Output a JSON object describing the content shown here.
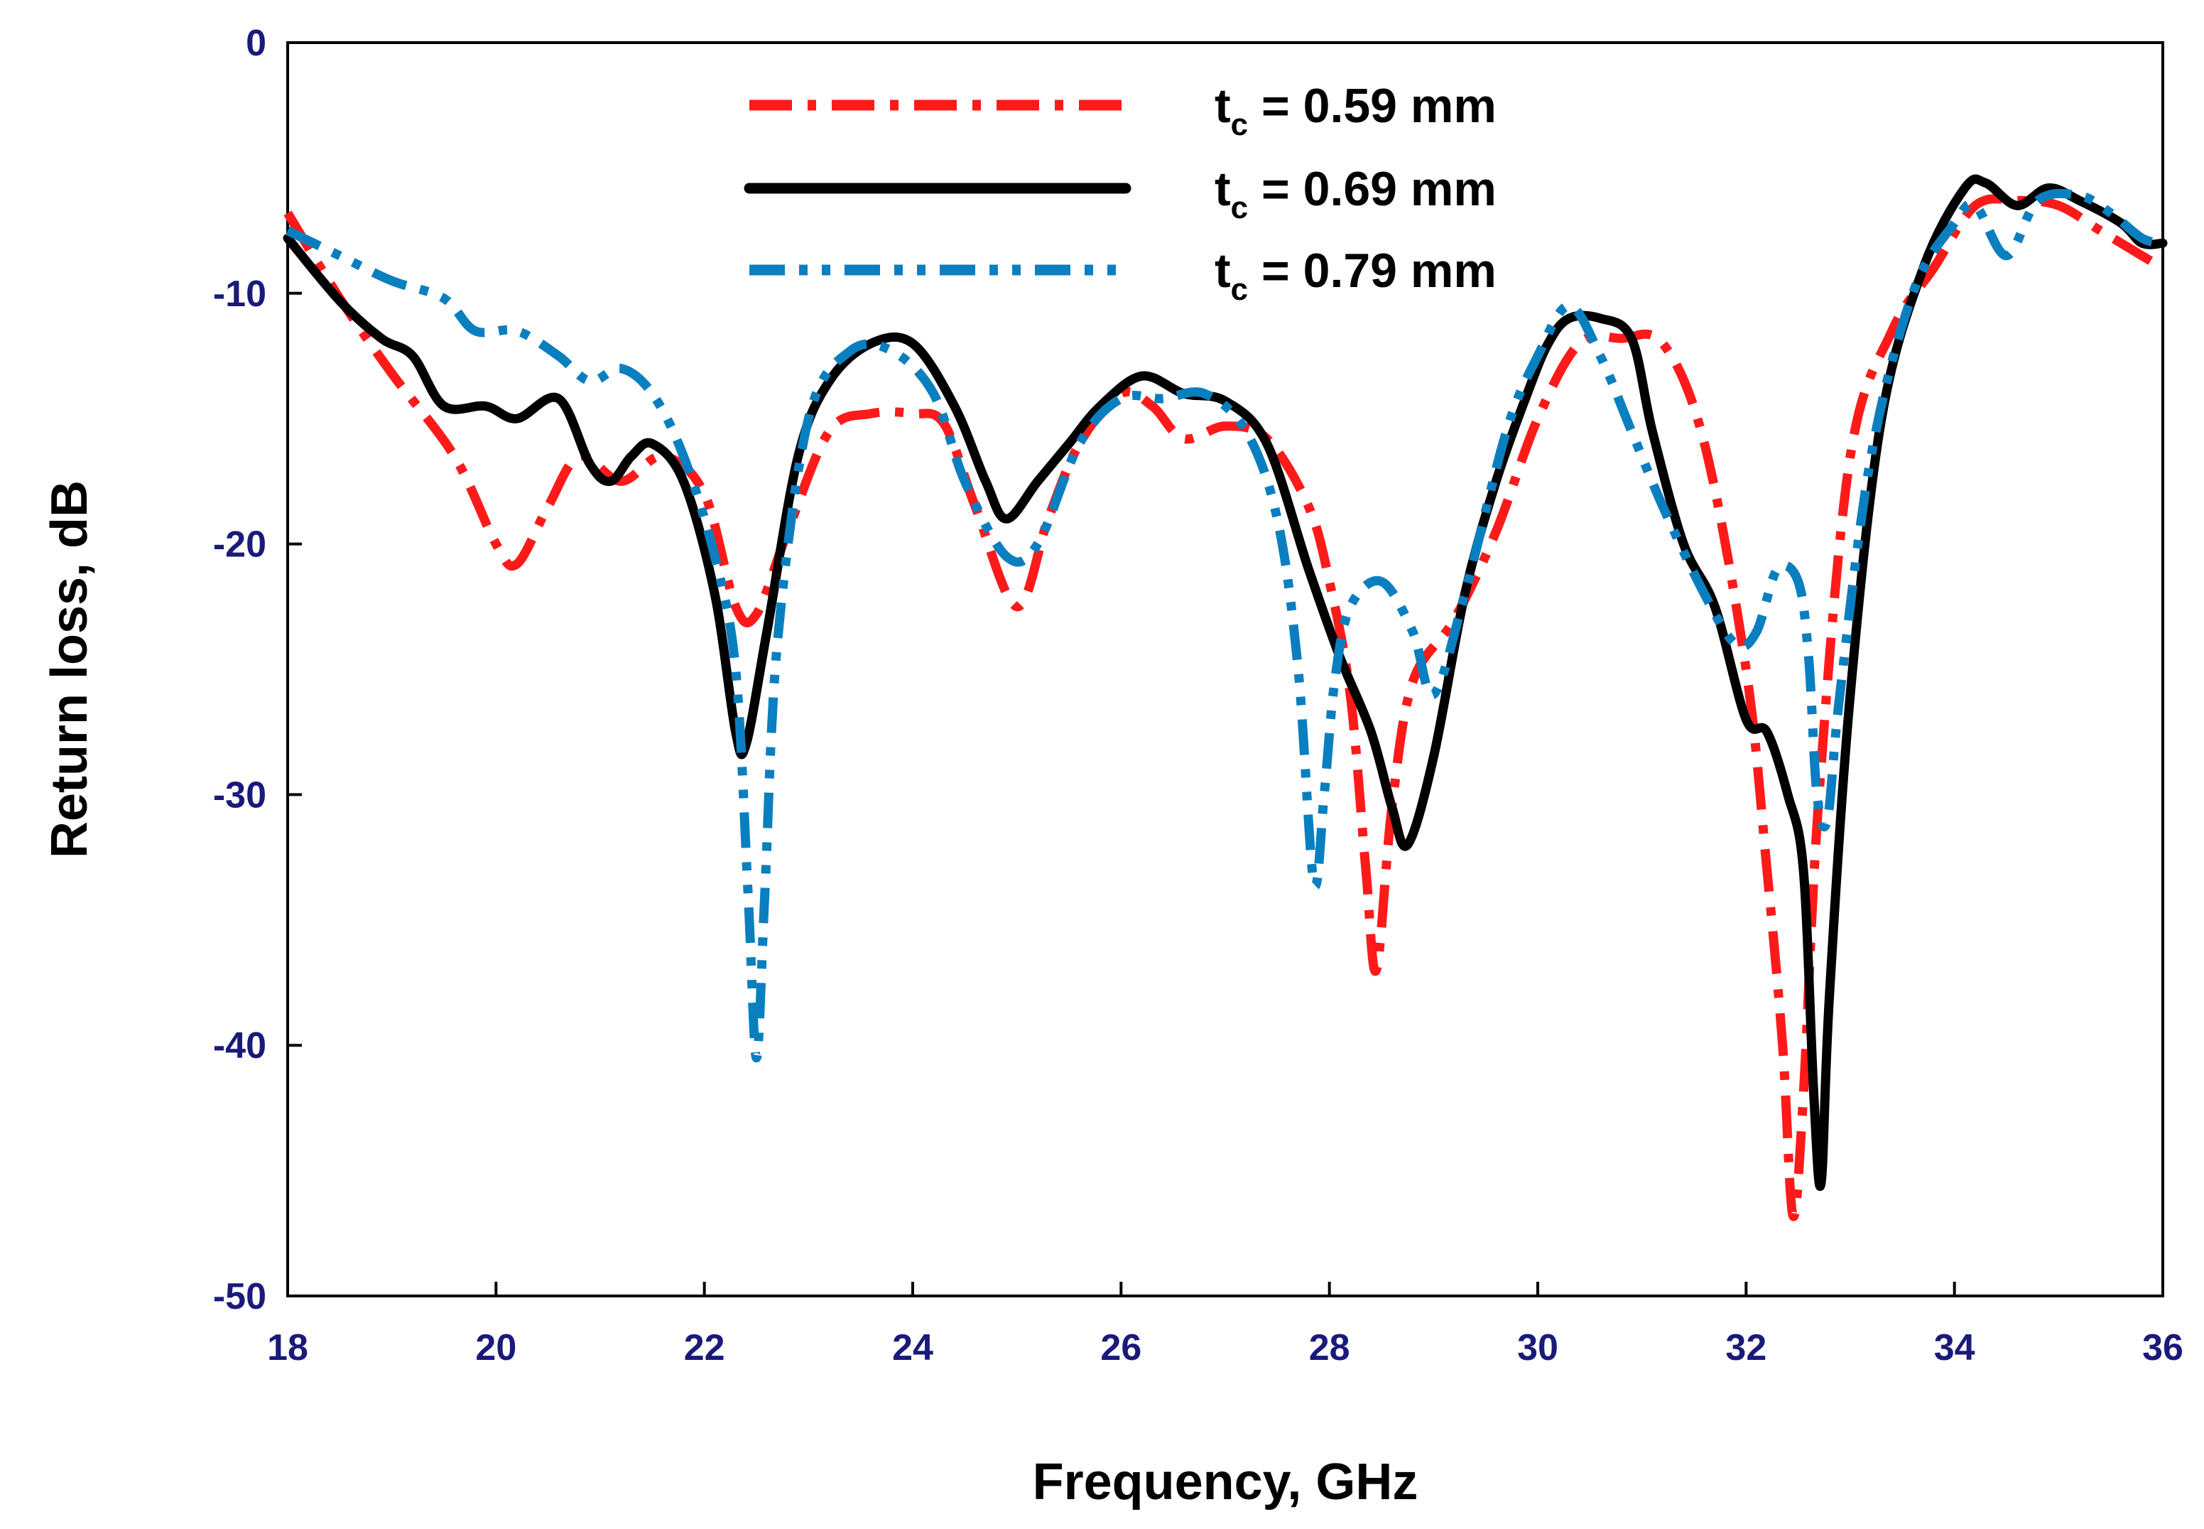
{
  "chart_data": {
    "type": "line",
    "title": "",
    "xlabel": "Frequency, GHz",
    "ylabel": "Return loss, dB",
    "xlim": [
      18,
      36
    ],
    "ylim": [
      -50,
      0
    ],
    "xticks": [
      "18",
      "20",
      "22",
      "24",
      "26",
      "28",
      "30",
      "32",
      "34",
      "36"
    ],
    "yticks": [
      "0",
      "-10",
      "-20",
      "-30",
      "-40",
      "-50"
    ],
    "legend_position": "top-center",
    "colors": {
      "axis": "#000000",
      "tick_label": "#1a1a7a",
      "red": "#ff1a1a",
      "black": "#000000",
      "blue": "#0a7fc0"
    },
    "series": [
      {
        "name": "tc = 0.59 mm",
        "legend_main": "t",
        "legend_sub": "c",
        "legend_rest": " = 0.59 mm",
        "color": "#ff1a1a",
        "dash": "dashdot",
        "x": [
          18.0,
          18.5,
          19.0,
          19.6,
          20.0,
          20.2,
          20.5,
          20.8,
          21.2,
          21.6,
          22.0,
          22.3,
          22.5,
          22.8,
          23.2,
          23.6,
          24.0,
          24.3,
          24.6,
          25.0,
          25.3,
          25.6,
          26.0,
          26.3,
          26.6,
          27.0,
          27.4,
          27.8,
          28.0,
          28.2,
          28.35,
          28.45,
          28.6,
          28.8,
          29.2,
          29.6,
          30.0,
          30.4,
          30.8,
          31.2,
          31.6,
          32.0,
          32.2,
          32.35,
          32.45,
          32.55,
          32.7,
          33.0,
          33.4,
          33.8,
          34.2,
          34.6,
          35.0,
          35.4,
          35.8,
          36.0
        ],
        "y": [
          -6.8,
          -10.2,
          -13.2,
          -16.5,
          -20.0,
          -20.8,
          -18.5,
          -16.5,
          -17.5,
          -16.5,
          -18.0,
          -22.5,
          -22.8,
          -19.5,
          -15.5,
          -14.8,
          -14.8,
          -15.2,
          -18.5,
          -22.5,
          -19.0,
          -16.0,
          -14.0,
          -14.5,
          -15.8,
          -15.3,
          -15.8,
          -18.5,
          -21.5,
          -26.0,
          -33.0,
          -37.0,
          -30.5,
          -25.5,
          -23.0,
          -19.5,
          -15.0,
          -12.0,
          -11.8,
          -12.0,
          -16.0,
          -25.0,
          -33.0,
          -40.0,
          -46.8,
          -42.0,
          -30.0,
          -16.5,
          -11.5,
          -9.0,
          -6.5,
          -6.3,
          -6.5,
          -7.5,
          -8.5,
          -9.0
        ]
      },
      {
        "name": "tc = 0.69 mm",
        "legend_main": "t",
        "legend_sub": "c",
        "legend_rest": " = 0.69 mm",
        "color": "#000000",
        "dash": "solid",
        "x": [
          18.0,
          18.5,
          18.9,
          19.2,
          19.5,
          19.9,
          20.2,
          20.6,
          20.9,
          21.1,
          21.3,
          21.5,
          21.8,
          22.1,
          22.3,
          22.4,
          22.6,
          22.9,
          23.2,
          23.6,
          24.0,
          24.4,
          24.7,
          24.9,
          25.2,
          25.5,
          25.8,
          26.2,
          26.6,
          27.0,
          27.4,
          27.8,
          28.1,
          28.4,
          28.6,
          28.75,
          29.0,
          29.3,
          29.6,
          29.9,
          30.1,
          30.3,
          30.6,
          30.9,
          31.1,
          31.4,
          31.7,
          32.0,
          32.2,
          32.4,
          32.55,
          32.65,
          32.72,
          32.8,
          33.0,
          33.3,
          33.7,
          34.1,
          34.3,
          34.6,
          34.9,
          35.2,
          35.6,
          35.8,
          36.0
        ],
        "y": [
          -7.8,
          -10.3,
          -11.8,
          -12.5,
          -14.5,
          -14.5,
          -15.0,
          -14.2,
          -16.8,
          -17.5,
          -16.5,
          -16.0,
          -17.5,
          -22.0,
          -27.5,
          -28.0,
          -23.5,
          -16.5,
          -13.5,
          -12.0,
          -12.0,
          -14.5,
          -17.5,
          -19.0,
          -17.5,
          -16.0,
          -14.5,
          -13.3,
          -14.0,
          -14.3,
          -16.0,
          -21.0,
          -24.5,
          -27.5,
          -30.5,
          -32.0,
          -28.5,
          -22.0,
          -17.5,
          -14.0,
          -12.0,
          -11.0,
          -11.0,
          -11.8,
          -15.5,
          -20.0,
          -22.5,
          -27.0,
          -27.5,
          -30.0,
          -33.0,
          -42.0,
          -45.5,
          -38.0,
          -26.0,
          -15.0,
          -9.0,
          -5.8,
          -5.6,
          -6.5,
          -5.8,
          -6.3,
          -7.2,
          -8.0,
          -8.0
        ]
      },
      {
        "name": "tc = 0.79 mm",
        "legend_main": "t",
        "legend_sub": "c",
        "legend_rest": " = 0.79 mm",
        "color": "#0a7fc0",
        "dash": "dashdotdot",
        "x": [
          18.0,
          18.5,
          19.0,
          19.5,
          19.8,
          20.2,
          20.6,
          20.9,
          21.2,
          21.5,
          21.8,
          22.1,
          22.3,
          22.42,
          22.5,
          22.58,
          22.7,
          23.0,
          23.4,
          23.8,
          24.2,
          24.5,
          24.9,
          25.2,
          25.6,
          26.0,
          26.4,
          26.8,
          27.2,
          27.5,
          27.7,
          27.85,
          27.95,
          28.05,
          28.2,
          28.5,
          28.8,
          29.0,
          29.3,
          29.7,
          30.0,
          30.3,
          30.6,
          30.9,
          31.2,
          31.6,
          31.9,
          32.1,
          32.3,
          32.5,
          32.6,
          32.68,
          32.78,
          32.9,
          33.2,
          33.6,
          34.0,
          34.2,
          34.5,
          34.8,
          35.2,
          35.5,
          35.8,
          36.0
        ],
        "y": [
          -7.5,
          -8.5,
          -9.5,
          -10.2,
          -11.5,
          -11.5,
          -12.5,
          -13.5,
          -13.0,
          -14.0,
          -16.5,
          -20.5,
          -25.0,
          -34.0,
          -40.5,
          -34.0,
          -24.0,
          -15.0,
          -12.3,
          -12.3,
          -14.0,
          -17.5,
          -20.5,
          -20.0,
          -16.0,
          -14.2,
          -14.2,
          -14.0,
          -15.5,
          -19.0,
          -25.0,
          -33.5,
          -30.0,
          -25.5,
          -22.5,
          -21.5,
          -23.5,
          -26.0,
          -22.0,
          -15.5,
          -12.5,
          -10.5,
          -12.5,
          -15.5,
          -18.5,
          -22.0,
          -24.0,
          -23.5,
          -21.0,
          -21.5,
          -24.5,
          -30.0,
          -31.0,
          -26.0,
          -16.5,
          -10.0,
          -7.2,
          -6.5,
          -8.5,
          -6.3,
          -6.1,
          -6.8,
          -7.8,
          -8.0
        ]
      }
    ]
  }
}
